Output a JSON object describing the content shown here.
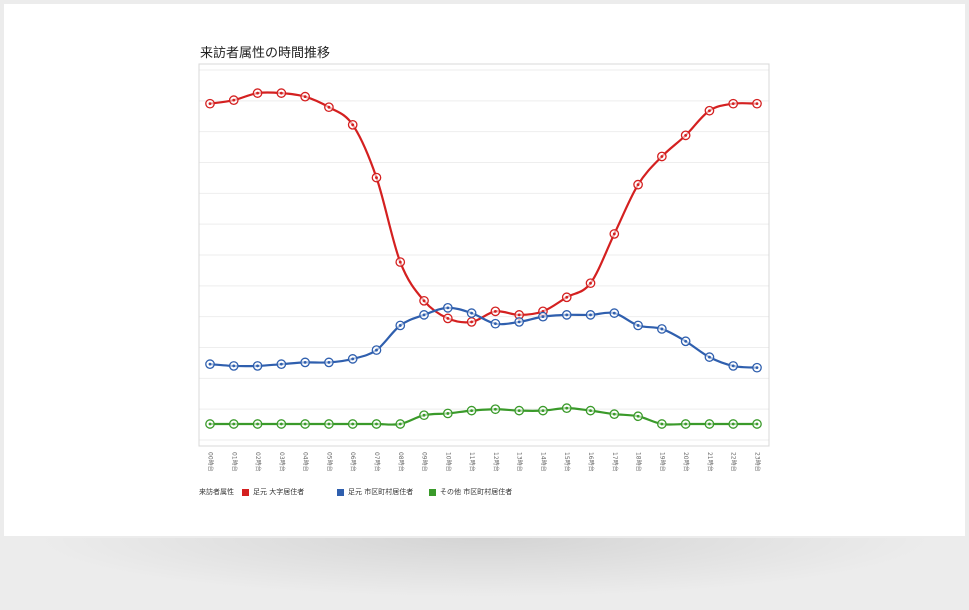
{
  "chart_data": {
    "type": "line",
    "title": "来訪者属性の時間推移",
    "legend_title": "来訪者属性",
    "categories": [
      "00時台",
      "01時台",
      "02時台",
      "03時台",
      "04時台",
      "05時台",
      "06時台",
      "07時台",
      "08時台",
      "09時台",
      "10時台",
      "11時台",
      "12時台",
      "13時台",
      "14時台",
      "15時台",
      "16時台",
      "17時台",
      "18時台",
      "19時台",
      "20時台",
      "21時台",
      "22時台",
      "23時台"
    ],
    "x_labels": [
      "00時台",
      "01時台",
      "02時台",
      "03時台",
      "04時台",
      "05時台",
      "06時台",
      "07時台",
      "08時台",
      "09時台",
      "10時台",
      "11時台",
      "12時台",
      "13時台",
      "14時台",
      "15時台",
      "16時台",
      "17時台",
      "18時台",
      "19時台",
      "20時台",
      "21時台",
      "22時台",
      "23時台"
    ],
    "ylim": [
      0,
      100
    ],
    "grid": true,
    "y_axis_labels": false,
    "legend_position": "bottom-left",
    "series": [
      {
        "name": "足元 大字居住者",
        "color": "#d42020",
        "values": [
          91,
          92,
          94,
          94,
          93,
          90,
          85,
          70,
          46,
          35,
          30,
          29,
          32,
          31,
          32,
          36,
          40,
          54,
          68,
          76,
          82,
          89,
          91,
          91
        ]
      },
      {
        "name": "足元 市区町村居住者",
        "color": "#2f5fae",
        "values": [
          17,
          16.5,
          16.5,
          17,
          17.5,
          17.5,
          18.5,
          21,
          28,
          31,
          33,
          31.5,
          28.5,
          29,
          30.5,
          31,
          31,
          31.5,
          28,
          27,
          23.5,
          19,
          16.5,
          16
        ]
      },
      {
        "name": "その他 市区町村居住者",
        "color": "#3a9a2a",
        "values": [
          0,
          0,
          0,
          0,
          0,
          0,
          0,
          0,
          0,
          2.5,
          3,
          3.8,
          4.2,
          3.8,
          3.8,
          4.5,
          3.8,
          2.8,
          2.2,
          0,
          0,
          0,
          0,
          0
        ]
      }
    ]
  }
}
